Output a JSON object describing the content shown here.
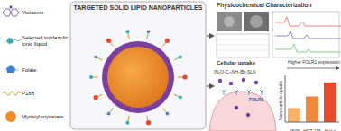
{
  "title": "TARGETED SOLID LIPID NANOPARTICLES",
  "legend_items": [
    "Violacein",
    "Selected imidazolic ionic liquid",
    "Folate",
    "P188",
    "Myristyl myristate"
  ],
  "panels": {
    "characterization": "Physicochemical Characterization",
    "uptake": "Cellular uptake",
    "formula": "[N₂O₂C₁₁NH₂]Br-SLN",
    "receptor": "FOLR1"
  },
  "chart_data": {
    "type": "bar",
    "categories": [
      "A549",
      "HCT-116",
      "HeLa"
    ],
    "values": [
      30,
      55,
      85
    ],
    "colors": [
      "#f6b26b",
      "#f08a3c",
      "#e8492b"
    ],
    "ylabel": "Nanoparticle uptake",
    "annotation": "Higher FOLR1 expression",
    "ylim": [
      0,
      100
    ],
    "tick_labels": "x"
  }
}
